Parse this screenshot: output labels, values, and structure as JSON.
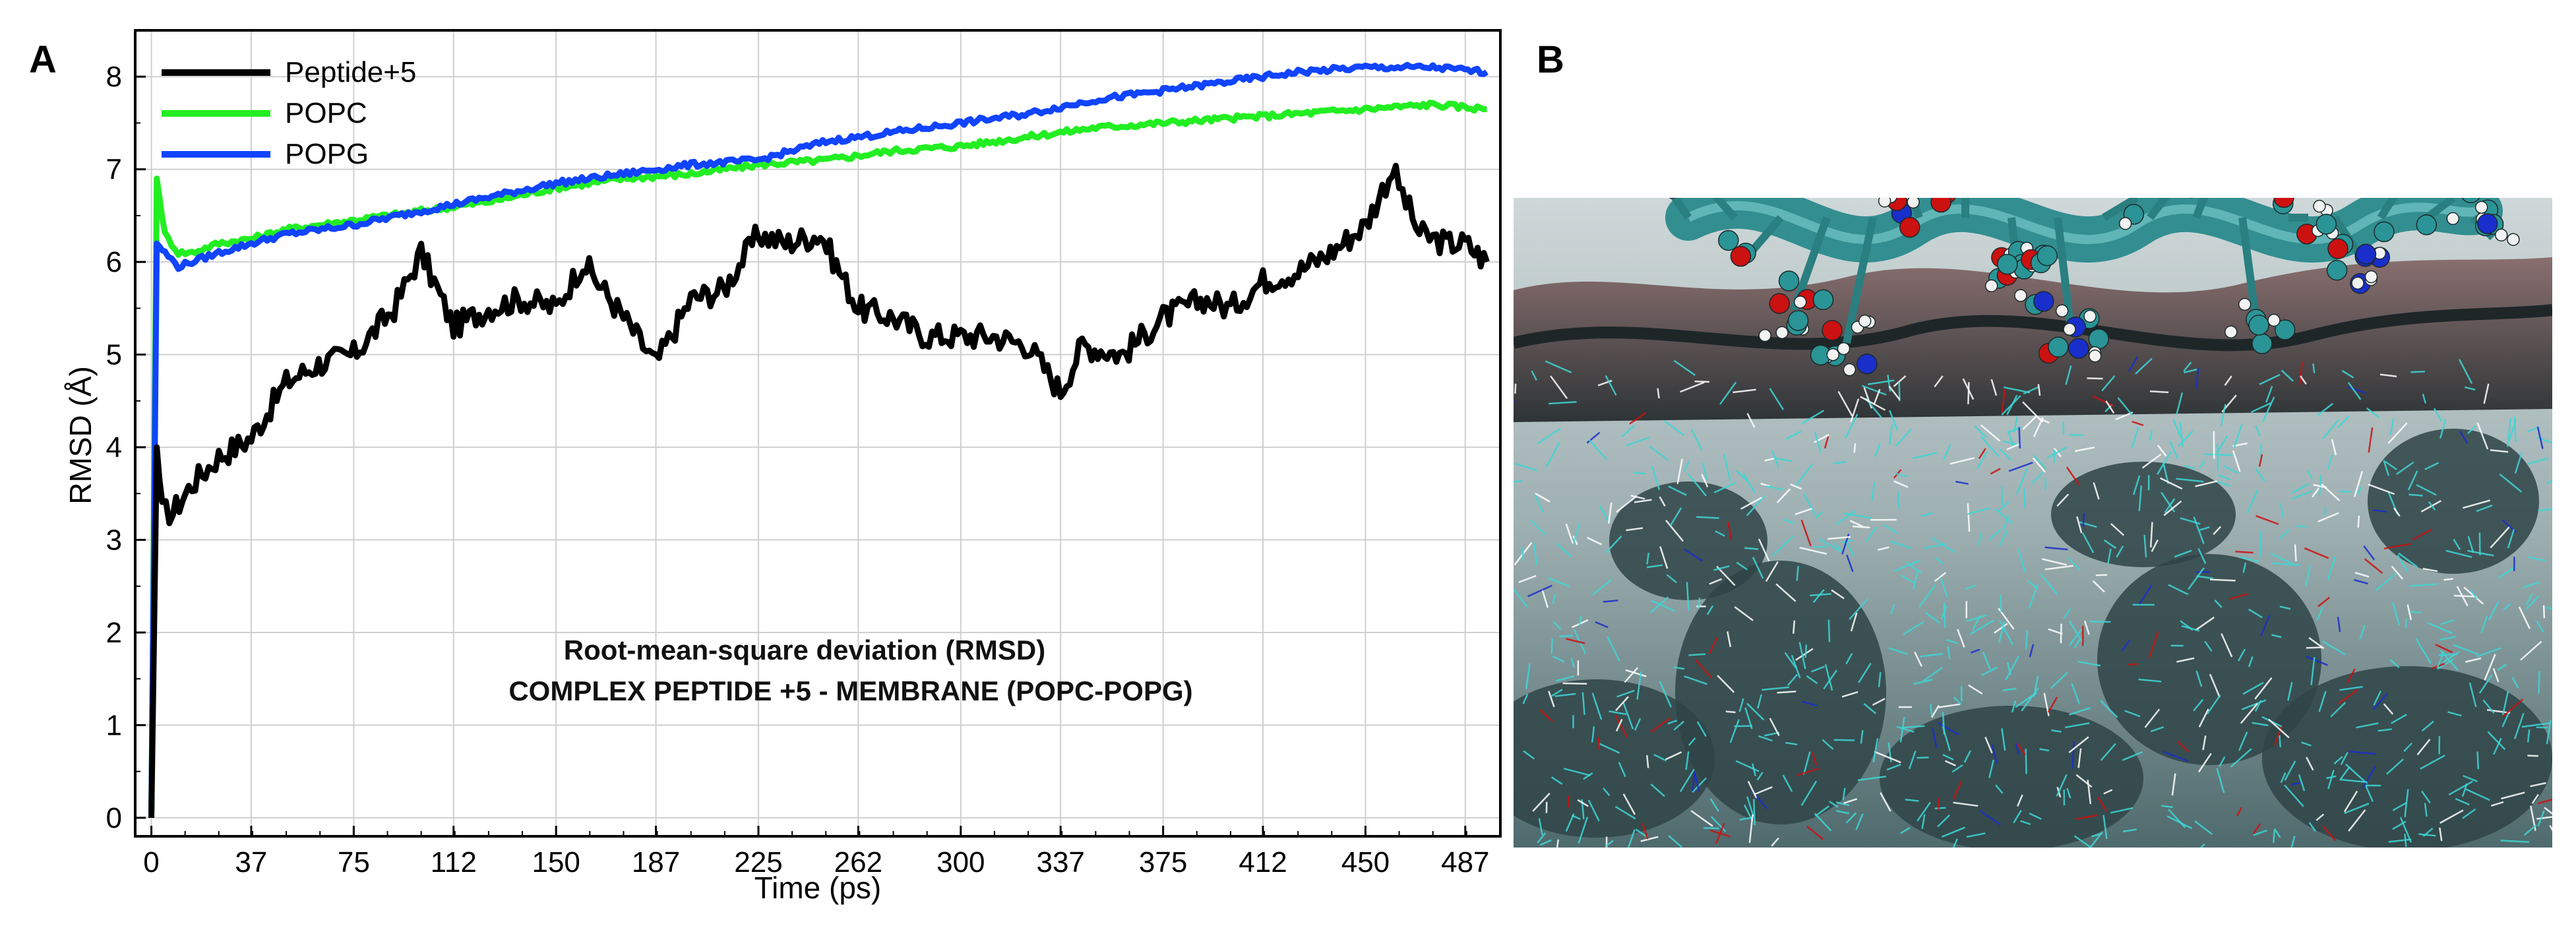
{
  "panels": {
    "left_label": "A",
    "right_label": "B"
  },
  "chart_data": {
    "type": "line",
    "title": "",
    "annotation": [
      "Root-mean-square deviation (RMSD)",
      "COMPLEX PEPTIDE +5 - MEMBRANE (POPC-POPG)"
    ],
    "xlabel": "Time (ps)",
    "ylabel": "RMSD (Å)",
    "xlim": [
      -6,
      500
    ],
    "ylim": [
      -0.2,
      8.5
    ],
    "xticks": [
      0,
      37,
      75,
      112,
      150,
      187,
      225,
      262,
      300,
      337,
      375,
      412,
      450,
      487
    ],
    "yticks": [
      0,
      1,
      2,
      3,
      4,
      5,
      6,
      7,
      8
    ],
    "grid": true,
    "legend_position": "top-left",
    "series": [
      {
        "name": "Peptide+5",
        "color": "#000000",
        "x": [
          0,
          2,
          4,
          8,
          15,
          25,
          37,
          50,
          62,
          75,
          90,
          100,
          112,
          125,
          137,
          150,
          160,
          175,
          187,
          200,
          212,
          225,
          235,
          248,
          262,
          275,
          287,
          300,
          312,
          325,
          337,
          345,
          360,
          375,
          390,
          400,
          412,
          425,
          437,
          450,
          460,
          470,
          480,
          487,
          495
        ],
        "values": [
          0.0,
          4.0,
          3.3,
          3.3,
          3.6,
          3.9,
          4.1,
          4.7,
          4.9,
          5.0,
          5.5,
          6.1,
          5.3,
          5.5,
          5.6,
          5.5,
          6.0,
          5.4,
          4.9,
          5.6,
          5.7,
          6.3,
          6.2,
          6.3,
          5.5,
          5.4,
          5.2,
          5.2,
          5.2,
          5.1,
          4.6,
          5.1,
          5.0,
          5.4,
          5.6,
          5.5,
          5.8,
          5.9,
          6.1,
          6.4,
          7.0,
          6.3,
          6.2,
          6.2,
          6.0
        ]
      },
      {
        "name": "POPC",
        "color": "#22ee22",
        "x": [
          0,
          2,
          5,
          10,
          15,
          25,
          37,
          50,
          75,
          100,
          125,
          150,
          175,
          200,
          225,
          250,
          275,
          300,
          325,
          350,
          375,
          400,
          425,
          450,
          475,
          495
        ],
        "values": [
          0.0,
          6.9,
          6.3,
          6.1,
          6.1,
          6.2,
          6.25,
          6.35,
          6.45,
          6.55,
          6.65,
          6.8,
          6.9,
          6.95,
          7.05,
          7.1,
          7.2,
          7.25,
          7.35,
          7.45,
          7.5,
          7.55,
          7.6,
          7.65,
          7.7,
          7.65
        ]
      },
      {
        "name": "POPG",
        "color": "#1144ff",
        "x": [
          0,
          2,
          5,
          10,
          15,
          25,
          37,
          50,
          75,
          100,
          125,
          150,
          175,
          200,
          225,
          250,
          275,
          300,
          325,
          350,
          375,
          400,
          425,
          450,
          475,
          495
        ],
        "values": [
          0.0,
          6.2,
          6.1,
          5.95,
          6.0,
          6.1,
          6.2,
          6.3,
          6.4,
          6.55,
          6.7,
          6.85,
          6.95,
          7.05,
          7.1,
          7.3,
          7.4,
          7.5,
          7.6,
          7.75,
          7.85,
          7.95,
          8.05,
          8.1,
          8.1,
          8.05
        ]
      }
    ]
  },
  "image_b": {
    "description_icon": "molecule-render-icon",
    "colors": {
      "membrane": "#5e7c80",
      "helix": "#2a8a8c",
      "lipid_lines": "#3fd6d6",
      "oxygen": "#cc1111",
      "nitrogen": "#1a2ecc"
    }
  }
}
